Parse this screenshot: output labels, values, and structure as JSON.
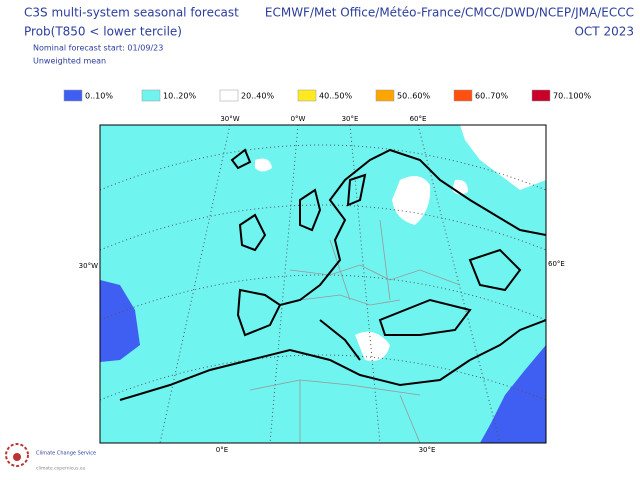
{
  "header": {
    "title": "C3S multi-system seasonal forecast",
    "subtitle": "Prob(T850 < lower tercile)",
    "start": "Nominal forecast start: 01/09/23",
    "method": "Unweighted mean",
    "providers": "ECMWF/Met Office/Météo-France/CMCC/DWD/NCEP/JMA/ECCC",
    "period": "OCT 2023"
  },
  "legend": {
    "items": [
      {
        "label": "0..10%",
        "color": "#3f5ef2"
      },
      {
        "label": "10..20%",
        "color": "#6ff4f0"
      },
      {
        "label": "20..40%",
        "color": "#ffffff"
      },
      {
        "label": "40..50%",
        "color": "#ffea22"
      },
      {
        "label": "50..60%",
        "color": "#ffa500"
      },
      {
        "label": "60..70%",
        "color": "#ff5010"
      },
      {
        "label": "70..100%",
        "color": "#c8002a"
      }
    ]
  },
  "map": {
    "top_labels": [
      "30°W",
      "0°W",
      "30°E",
      "60°E"
    ],
    "left_label": "30°W",
    "right_label": "60°E",
    "bottom_labels": [
      "0°E",
      "30°E"
    ]
  },
  "logo": {
    "name": "Climate Change Service",
    "url": "climate.copernicus.eu"
  }
}
